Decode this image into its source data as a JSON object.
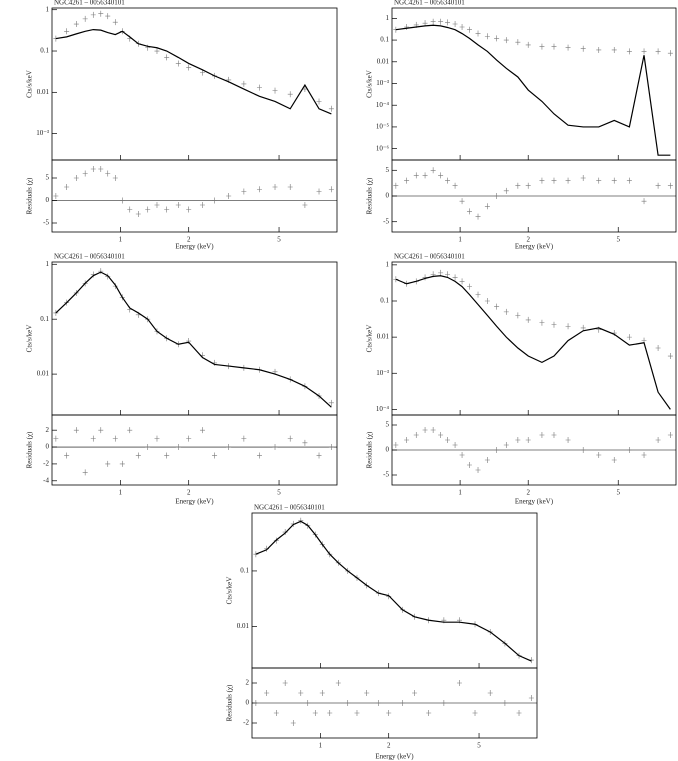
{
  "chart_data": [
    {
      "type": "spectrum",
      "title": "NGC4261 – 0056340101",
      "ylabel": "Cts/s/keV",
      "rlabel": "Residuals (χ)",
      "xlabel": "Energy (keV)",
      "xscale": "log",
      "yscale": "log",
      "xlim": [
        0.5,
        9
      ],
      "xticks": [
        1,
        2,
        5
      ],
      "ylim": [
        0.00023,
        1.1
      ],
      "yticks": [
        1,
        0.1,
        0.01,
        {
          "value": 0.001,
          "label": "10⁻³"
        }
      ],
      "rlim": [
        -7,
        9
      ],
      "rticks": [
        -5,
        0,
        5
      ],
      "x": [
        0.52,
        0.58,
        0.64,
        0.7,
        0.76,
        0.82,
        0.88,
        0.95,
        1.02,
        1.1,
        1.2,
        1.32,
        1.45,
        1.6,
        1.8,
        2.0,
        2.3,
        2.6,
        3.0,
        3.5,
        4.1,
        4.8,
        5.6,
        6.5,
        7.5,
        8.5
      ],
      "values": [
        0.2,
        0.3,
        0.45,
        0.6,
        0.75,
        0.8,
        0.7,
        0.5,
        0.3,
        0.2,
        0.15,
        0.12,
        0.1,
        0.07,
        0.05,
        0.04,
        0.03,
        0.025,
        0.02,
        0.016,
        0.013,
        0.011,
        0.009,
        0.012,
        0.006,
        0.004
      ],
      "model": [
        0.2,
        0.22,
        0.26,
        0.3,
        0.33,
        0.32,
        0.28,
        0.25,
        0.3,
        0.22,
        0.15,
        0.13,
        0.12,
        0.1,
        0.07,
        0.05,
        0.035,
        0.025,
        0.018,
        0.012,
        0.008,
        0.006,
        0.004,
        0.015,
        0.004,
        0.003
      ],
      "residuals": [
        1,
        3,
        5,
        6,
        7,
        7,
        6,
        5,
        0,
        -2,
        -3,
        -2,
        -1,
        -2,
        -1,
        -2,
        -1,
        0,
        1,
        2,
        2.5,
        3,
        3,
        -1,
        2,
        2.5
      ]
    },
    {
      "type": "spectrum",
      "title": "NGC4261 – 0056340101",
      "ylabel": "Cts/s/keV",
      "rlabel": "Residuals (χ)",
      "xlabel": "Energy (keV)",
      "xscale": "log",
      "yscale": "log",
      "xlim": [
        0.5,
        9
      ],
      "xticks": [
        1,
        2,
        5
      ],
      "ylim": [
        3e-07,
        3
      ],
      "yticks": [
        1,
        0.1,
        0.01,
        {
          "value": 0.001,
          "label": "10⁻³"
        },
        {
          "value": 0.0001,
          "label": "10⁻⁴"
        },
        {
          "value": 1e-05,
          "label": "10⁻⁵"
        },
        {
          "value": 1e-06,
          "label": "10⁻⁶"
        }
      ],
      "rlim": [
        -7,
        7
      ],
      "rticks": [
        -5,
        0,
        5
      ],
      "x": [
        0.52,
        0.58,
        0.64,
        0.7,
        0.76,
        0.82,
        0.88,
        0.95,
        1.02,
        1.1,
        1.2,
        1.32,
        1.45,
        1.6,
        1.8,
        2.0,
        2.3,
        2.6,
        3.0,
        3.5,
        4.1,
        4.8,
        5.6,
        6.5,
        7.5,
        8.5
      ],
      "values": [
        0.3,
        0.4,
        0.5,
        0.6,
        0.7,
        0.7,
        0.65,
        0.55,
        0.4,
        0.3,
        0.2,
        0.15,
        0.12,
        0.1,
        0.08,
        0.06,
        0.05,
        0.05,
        0.045,
        0.04,
        0.035,
        0.035,
        0.03,
        0.03,
        0.03,
        0.025
      ],
      "model": [
        0.3,
        0.35,
        0.4,
        0.45,
        0.48,
        0.45,
        0.38,
        0.3,
        0.2,
        0.12,
        0.06,
        0.03,
        0.012,
        0.005,
        0.002,
        0.0005,
        0.00015,
        4e-05,
        1.2e-05,
        1e-05,
        1e-05,
        2e-05,
        1e-05,
        0.02,
        5e-07,
        5e-07
      ],
      "residuals": [
        2,
        3,
        4,
        4,
        5,
        4,
        3,
        2,
        -1,
        -3,
        -4,
        -2,
        0,
        1,
        2,
        2,
        3,
        3,
        3,
        3.5,
        3,
        3,
        3,
        -1,
        2,
        2
      ]
    },
    {
      "type": "spectrum",
      "title": "NGC4261 – 0056340101",
      "ylabel": "Cts/s/keV",
      "rlabel": "Residuals (χ)",
      "xlabel": "Energy (keV)",
      "xscale": "log",
      "yscale": "log",
      "xlim": [
        0.5,
        9
      ],
      "xticks": [
        1,
        2,
        5
      ],
      "ylim": [
        0.0018,
        1.1
      ],
      "yticks": [
        1,
        0.1,
        0.01
      ],
      "rlim": [
        -4.5,
        3.8
      ],
      "rticks": [
        -4,
        -2,
        0,
        2
      ],
      "x": [
        0.52,
        0.58,
        0.64,
        0.7,
        0.76,
        0.82,
        0.88,
        0.95,
        1.02,
        1.1,
        1.2,
        1.32,
        1.45,
        1.6,
        1.8,
        2.0,
        2.3,
        2.6,
        3.0,
        3.5,
        4.1,
        4.8,
        5.6,
        6.5,
        7.5,
        8.5
      ],
      "values": [
        0.13,
        0.2,
        0.3,
        0.45,
        0.65,
        0.75,
        0.6,
        0.4,
        0.25,
        0.15,
        0.12,
        0.1,
        0.06,
        0.045,
        0.035,
        0.04,
        0.022,
        0.016,
        0.014,
        0.013,
        0.012,
        0.011,
        0.008,
        0.006,
        0.004,
        0.003
      ],
      "model": [
        0.13,
        0.2,
        0.3,
        0.45,
        0.62,
        0.72,
        0.62,
        0.42,
        0.25,
        0.16,
        0.13,
        0.1,
        0.06,
        0.045,
        0.035,
        0.038,
        0.02,
        0.015,
        0.014,
        0.013,
        0.012,
        0.01,
        0.008,
        0.006,
        0.004,
        0.0025
      ],
      "residuals": [
        1,
        -1,
        2,
        -3,
        1,
        2,
        -2,
        1,
        -2,
        2,
        -1,
        0,
        1,
        -1,
        0,
        1,
        2,
        -1,
        0,
        1,
        -1,
        0,
        1,
        0.5,
        -1,
        0
      ]
    },
    {
      "type": "spectrum",
      "title": "NGC4261 – 0056340101",
      "ylabel": "Cts/s/keV",
      "rlabel": "Residuals (χ)",
      "xlabel": "Energy (keV)",
      "xscale": "log",
      "yscale": "log",
      "xlim": [
        0.5,
        9
      ],
      "xticks": [
        1,
        2,
        5
      ],
      "ylim": [
        7e-05,
        1.2
      ],
      "yticks": [
        1,
        0.1,
        0.01,
        {
          "value": 0.001,
          "label": "10⁻³"
        },
        {
          "value": 0.0001,
          "label": "10⁻⁴"
        }
      ],
      "rlim": [
        -7,
        7
      ],
      "rticks": [
        -5,
        0,
        5
      ],
      "x": [
        0.52,
        0.58,
        0.64,
        0.7,
        0.76,
        0.82,
        0.88,
        0.95,
        1.02,
        1.1,
        1.2,
        1.32,
        1.45,
        1.6,
        1.8,
        2.0,
        2.3,
        2.6,
        3.0,
        3.5,
        4.1,
        4.8,
        5.6,
        6.5,
        7.5,
        8.5
      ],
      "values": [
        0.4,
        0.3,
        0.35,
        0.45,
        0.55,
        0.6,
        0.55,
        0.45,
        0.35,
        0.25,
        0.15,
        0.1,
        0.07,
        0.05,
        0.04,
        0.03,
        0.025,
        0.022,
        0.02,
        0.018,
        0.016,
        0.013,
        0.01,
        0.008,
        0.005,
        0.003
      ],
      "model": [
        0.4,
        0.3,
        0.35,
        0.42,
        0.48,
        0.5,
        0.45,
        0.35,
        0.25,
        0.15,
        0.08,
        0.04,
        0.02,
        0.01,
        0.005,
        0.003,
        0.002,
        0.003,
        0.008,
        0.015,
        0.018,
        0.012,
        0.006,
        0.007,
        0.0003,
        0.0001
      ],
      "residuals": [
        1,
        2,
        3,
        4,
        4,
        3,
        2,
        1,
        -1,
        -3,
        -4,
        -2,
        0,
        1,
        2,
        2,
        3,
        3,
        2,
        0,
        -1,
        -2,
        0,
        -1,
        2,
        3
      ]
    },
    {
      "type": "spectrum",
      "title": "NGC4261 – 0056340101",
      "ylabel": "Cts/s/keV",
      "rlabel": "Residuals (χ)",
      "xlabel": "Energy (keV)",
      "xscale": "log",
      "yscale": "log",
      "xlim": [
        0.5,
        9
      ],
      "xticks": [
        1,
        2,
        5
      ],
      "ylim": [
        0.0018,
        1.1
      ],
      "yticks": [
        0.1,
        0.01
      ],
      "rlim": [
        -3.5,
        3.5
      ],
      "rticks": [
        -2,
        0,
        2
      ],
      "x": [
        0.52,
        0.58,
        0.64,
        0.7,
        0.76,
        0.82,
        0.88,
        0.95,
        1.02,
        1.1,
        1.2,
        1.32,
        1.45,
        1.6,
        1.8,
        2.0,
        2.3,
        2.6,
        3.0,
        3.5,
        4.1,
        4.8,
        5.6,
        6.5,
        7.5,
        8.5
      ],
      "values": [
        0.2,
        0.25,
        0.35,
        0.5,
        0.7,
        0.8,
        0.65,
        0.45,
        0.3,
        0.2,
        0.14,
        0.1,
        0.075,
        0.055,
        0.04,
        0.035,
        0.02,
        0.015,
        0.013,
        0.013,
        0.013,
        0.011,
        0.008,
        0.005,
        0.003,
        0.0025
      ],
      "model": [
        0.2,
        0.24,
        0.36,
        0.48,
        0.68,
        0.78,
        0.66,
        0.45,
        0.3,
        0.2,
        0.14,
        0.1,
        0.075,
        0.055,
        0.04,
        0.036,
        0.02,
        0.015,
        0.013,
        0.012,
        0.012,
        0.011,
        0.008,
        0.005,
        0.003,
        0.0024
      ],
      "residuals": [
        0,
        1,
        -1,
        2,
        -2,
        1,
        0,
        -1,
        1,
        -1,
        2,
        0,
        -1,
        1,
        0,
        -1,
        0,
        1,
        -1,
        0,
        2,
        -1,
        1,
        0,
        -1,
        0.5
      ]
    }
  ]
}
